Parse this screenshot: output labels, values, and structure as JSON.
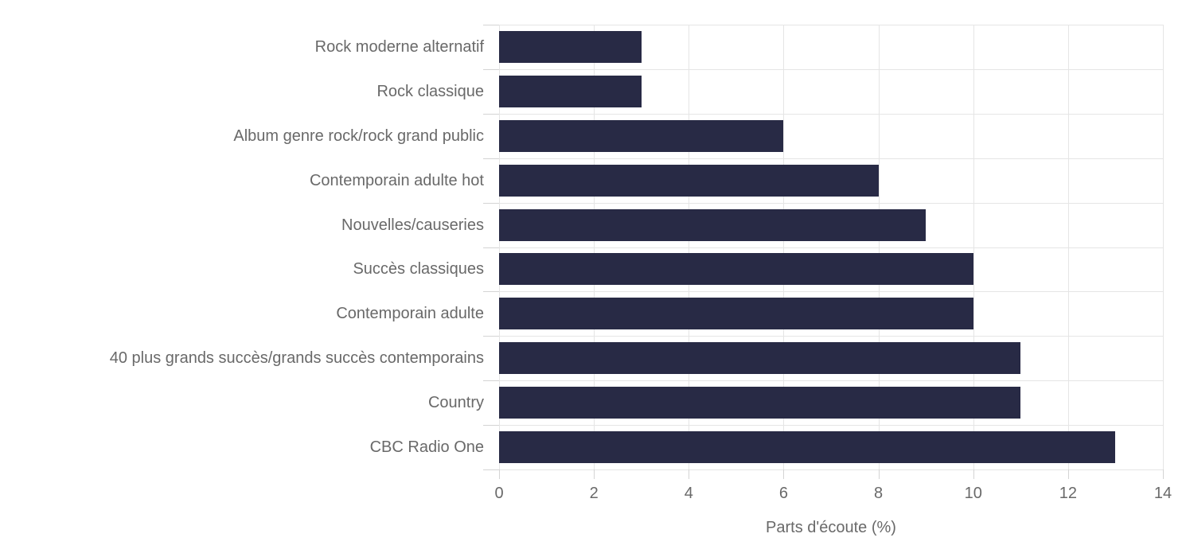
{
  "chart_data": {
    "type": "bar",
    "orientation": "horizontal",
    "title": "",
    "xlabel": "Parts d'écoute (%)",
    "ylabel": "",
    "categories": [
      "Rock moderne alternatif",
      "Rock classique",
      "Album genre rock/rock grand public",
      "Contemporain adulte hot",
      "Nouvelles/causeries",
      "Succès classiques",
      "Contemporain adulte",
      "40 plus grands succès/grands succès contemporains",
      "Country",
      "CBC Radio One"
    ],
    "values": [
      3,
      3,
      6,
      8,
      9,
      10,
      10,
      11,
      11,
      13
    ],
    "xlim": [
      0,
      14
    ],
    "xticks": [
      0,
      2,
      4,
      6,
      8,
      10,
      12,
      14
    ],
    "grid": "on",
    "legend": "none",
    "colors": {
      "bar": "#282a45",
      "grid": "#e5e5e5",
      "tick": "#d4d4d4",
      "text": "#696969",
      "background": "#ffffff"
    }
  }
}
